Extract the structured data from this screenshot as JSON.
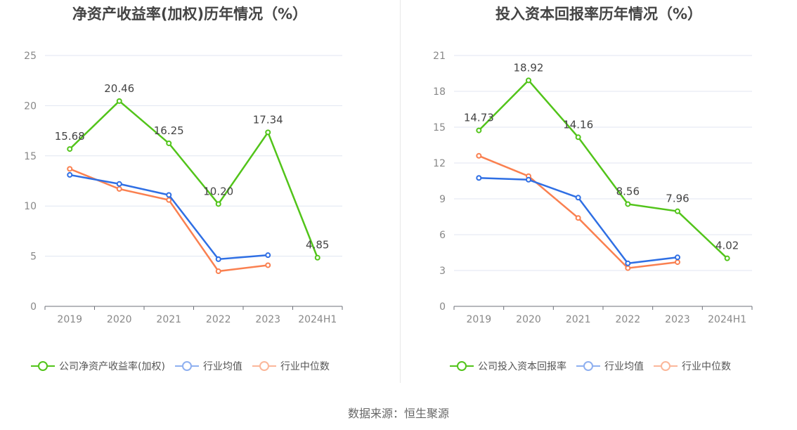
{
  "chart_data": [
    {
      "type": "line",
      "title": "净资产收益率(加权)历年情况（%）",
      "categories": [
        "2019",
        "2020",
        "2021",
        "2022",
        "2023",
        "2024H1"
      ],
      "ylim": [
        0,
        25
      ],
      "yticks": [
        0,
        5,
        10,
        15,
        20,
        25
      ],
      "grid": true,
      "legend": "bottom",
      "series": [
        {
          "name": "公司净资产收益率(加权)",
          "color": "#52c41a",
          "values": [
            15.68,
            20.46,
            16.25,
            10.2,
            17.34,
            4.85
          ],
          "labels": [
            "15.68",
            "20.46",
            "16.25",
            "10.20",
            "17.34",
            "4.85"
          ]
        },
        {
          "name": "行业均值",
          "color": "#2f6fe4",
          "values": [
            13.1,
            12.2,
            11.1,
            4.7,
            5.1,
            null
          ]
        },
        {
          "name": "行业中位数",
          "color": "#fa8050",
          "values": [
            13.7,
            11.7,
            10.6,
            3.5,
            4.1,
            null
          ]
        }
      ]
    },
    {
      "type": "line",
      "title": "投入资本回报率历年情况（%）",
      "categories": [
        "2019",
        "2020",
        "2021",
        "2022",
        "2023",
        "2024H1"
      ],
      "ylim": [
        0,
        21
      ],
      "yticks": [
        0,
        3,
        6,
        9,
        12,
        15,
        18,
        21
      ],
      "grid": true,
      "legend": "bottom",
      "series": [
        {
          "name": "公司投入资本回报率",
          "color": "#52c41a",
          "values": [
            14.73,
            18.92,
            14.16,
            8.56,
            7.96,
            4.02
          ],
          "labels": [
            "14.73",
            "18.92",
            "14.16",
            "8.56",
            "7.96",
            "4.02"
          ]
        },
        {
          "name": "行业均值",
          "color": "#2f6fe4",
          "values": [
            10.75,
            10.6,
            9.1,
            3.6,
            4.1,
            null
          ]
        },
        {
          "name": "行业中位数",
          "color": "#fa8050",
          "values": [
            12.6,
            10.9,
            7.4,
            3.2,
            3.7,
            null
          ]
        }
      ]
    }
  ],
  "source": "数据来源：恒生聚源"
}
